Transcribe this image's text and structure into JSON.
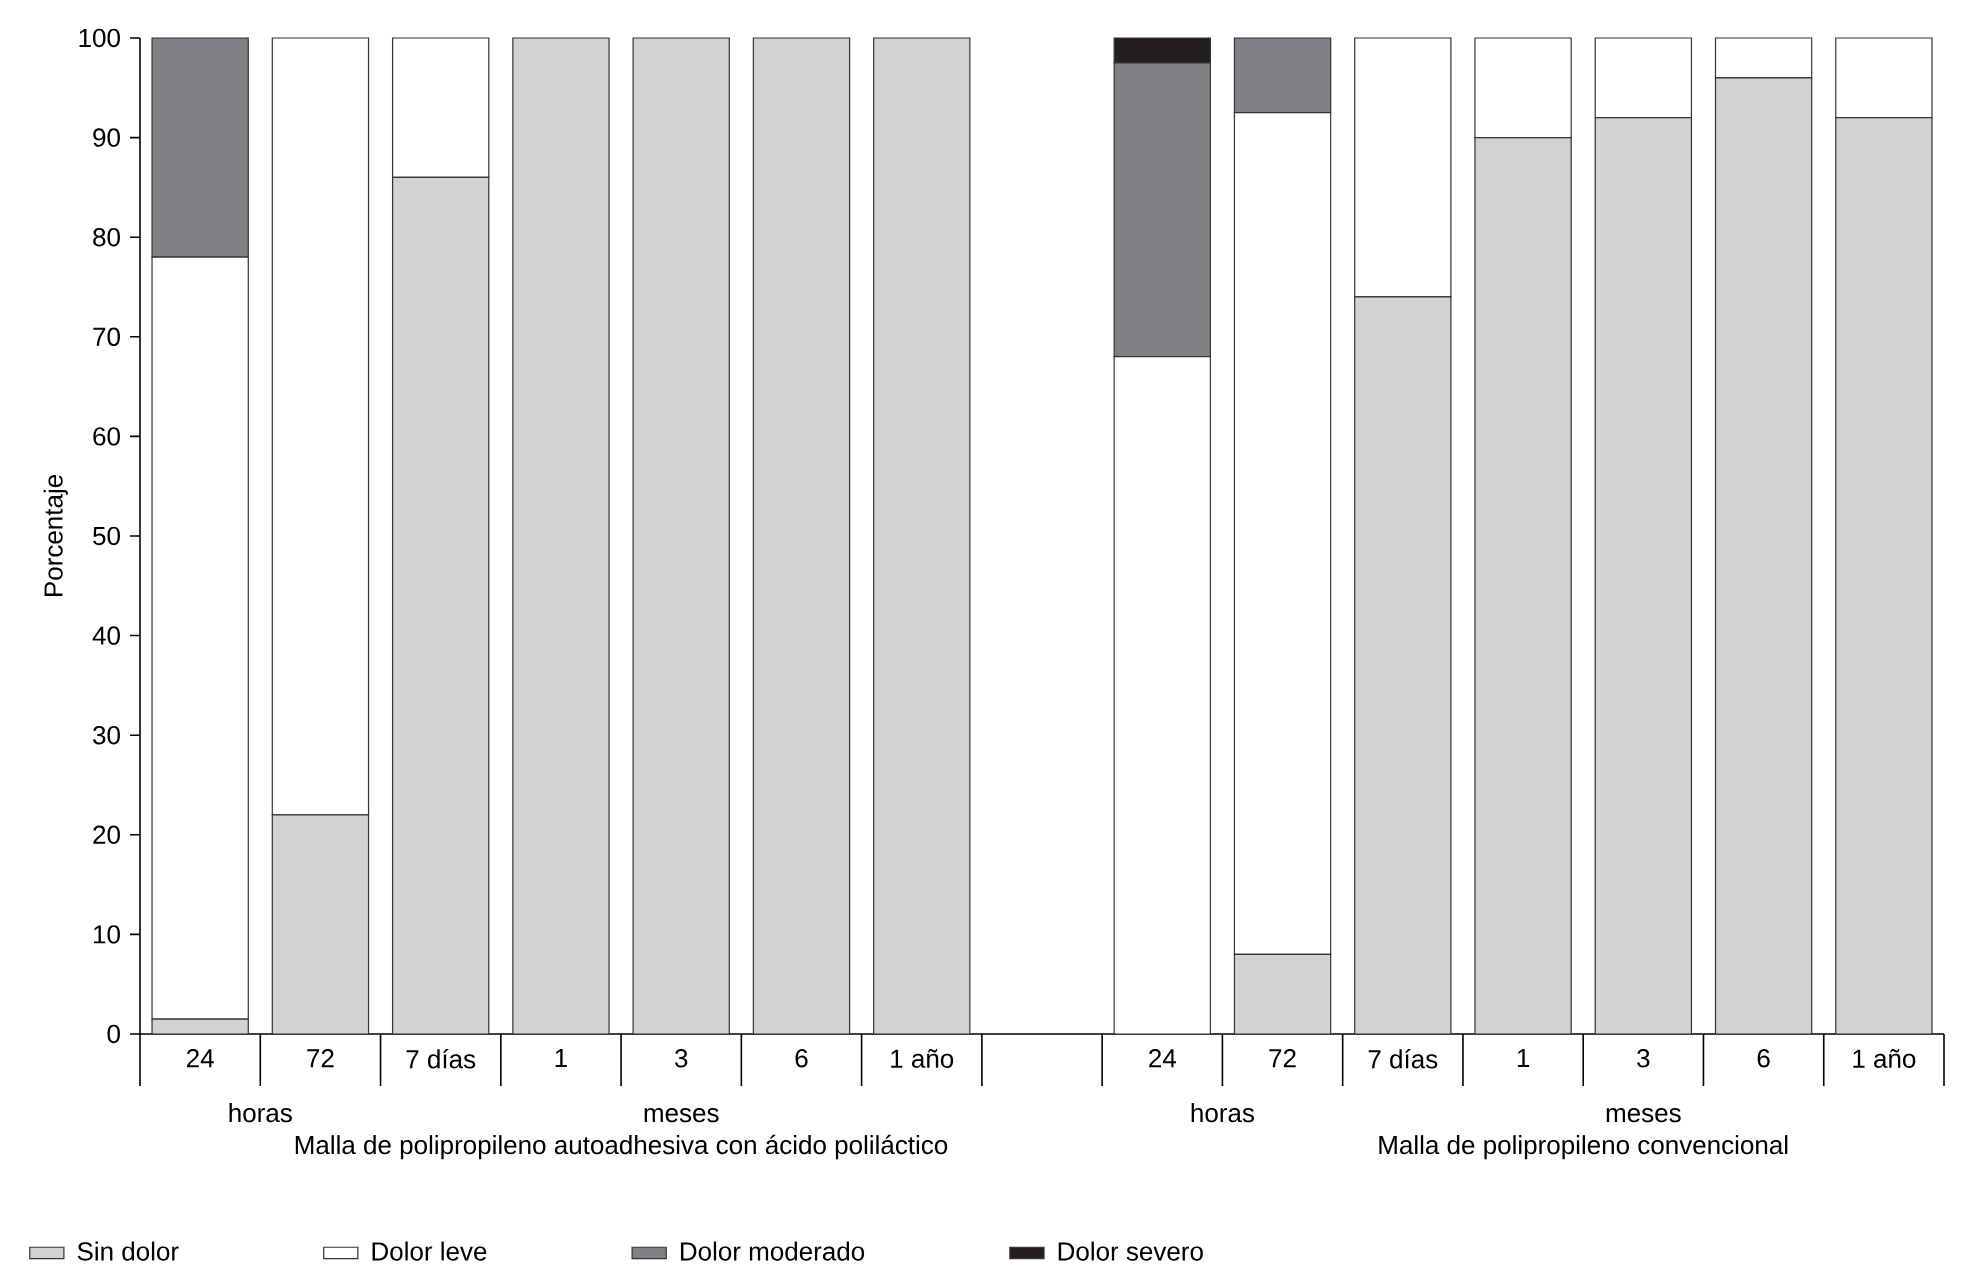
{
  "chart_data": {
    "type": "bar",
    "stacked": true,
    "ylabel": "Porcentaje",
    "categories": [
      "24",
      "72",
      "7 días",
      "1",
      "3",
      "6",
      "1 año",
      null,
      "24",
      "72",
      "7 días",
      "1",
      "3",
      "6",
      "1 año"
    ],
    "series": [
      {
        "name": "Sin dolor",
        "color": "#d1d2d4",
        "values": [
          1.5,
          22,
          86,
          100,
          100,
          100,
          100,
          null,
          0,
          8,
          74,
          90,
          92,
          96,
          92
        ]
      },
      {
        "name": "Dolor leve",
        "color": "#ffffff",
        "values": [
          76.5,
          78,
          14,
          0,
          0,
          0,
          0,
          null,
          68,
          84.5,
          26,
          10,
          8,
          4,
          8
        ]
      },
      {
        "name": "Dolor moderado",
        "color": "#808184",
        "values": [
          22,
          0,
          0,
          0,
          0,
          0,
          0,
          null,
          29.5,
          7.5,
          0,
          0,
          0,
          0,
          0
        ]
      },
      {
        "name": "Dolor severo",
        "color": "#231f20",
        "values": [
          0,
          0,
          0,
          0,
          0,
          0,
          0,
          null,
          2.5,
          0,
          0,
          0,
          0,
          0,
          0
        ]
      }
    ],
    "ylim": [
      0,
      100
    ],
    "yticks": [
      0,
      10,
      20,
      30,
      40,
      50,
      60,
      70,
      80,
      90,
      100
    ],
    "legend": "bottom",
    "annotations": [
      "horas",
      "meses",
      "Malla de polipropileno autoadhesiva con ácido poliláctico",
      "horas",
      "meses",
      "Malla de polipropileno convencional"
    ]
  }
}
